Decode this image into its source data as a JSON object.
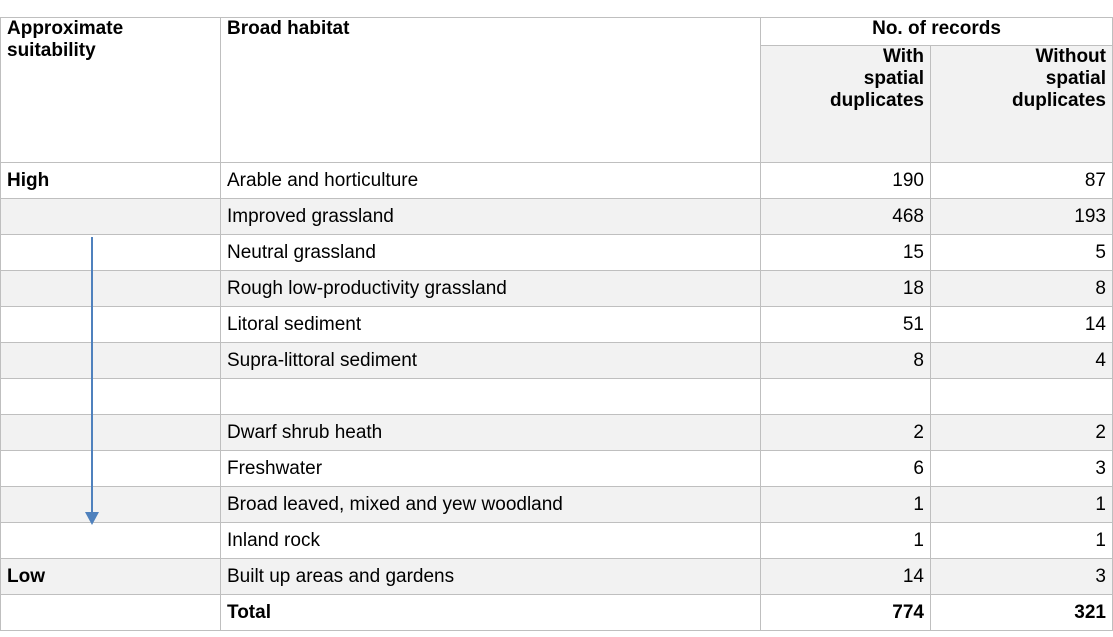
{
  "header": {
    "suitability": "Approximate suitability",
    "habitat": "Broad habitat",
    "records": "No. of records",
    "with": "With spatial duplicates",
    "without": "Without spatial duplicates"
  },
  "table": {
    "rows": [
      [
        "High",
        "Arable and horticulture",
        190,
        87
      ],
      [
        null,
        "Improved grassland",
        468,
        193
      ],
      [
        null,
        "Neutral grassland",
        15,
        5
      ],
      [
        null,
        "Rough low-productivity grassland",
        18,
        8
      ],
      [
        null,
        "Litoral sediment",
        51,
        14
      ],
      [
        null,
        "Supra-littoral sediment",
        8,
        4
      ],
      [
        null,
        null,
        null,
        null
      ],
      [
        null,
        "Dwarf shrub heath",
        2,
        2
      ],
      [
        null,
        "Freshwater",
        6,
        3
      ],
      [
        null,
        "Broad leaved, mixed and yew woodland",
        1,
        1
      ],
      [
        null,
        "Inland rock",
        1,
        1
      ],
      [
        "Low",
        "Built up areas and gardens",
        14,
        3
      ],
      [
        null,
        "Total",
        774,
        321
      ]
    ]
  }
}
